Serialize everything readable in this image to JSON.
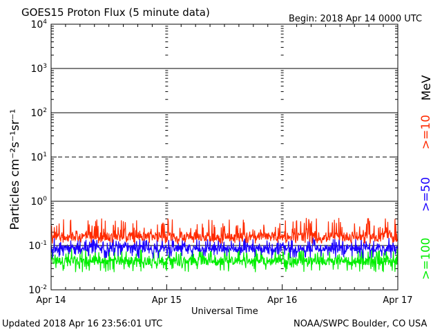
{
  "header": {
    "title": "GOES15 Proton Flux (5 minute data)",
    "begin": "Begin: 2018 Apr 14 0000 UTC"
  },
  "footer": {
    "updated": "Updated 2018 Apr 16 23:56:01 UTC",
    "credit": "NOAA/SWPC Boulder, CO USA"
  },
  "colors": {
    "ge10": "#ff2a00",
    "ge50": "#1a00ff",
    "ge100": "#00ee00",
    "axis": "#000000"
  },
  "chart_data": {
    "type": "line",
    "title": "GOES15 Proton Flux (5 minute data)",
    "xlabel": "Universal Time",
    "ylabel": "Particles cm⁻²s⁻¹sr⁻¹",
    "yscale": "log",
    "ylim": [
      0.01,
      10000
    ],
    "xlim_days": [
      0,
      3
    ],
    "y_ticks": [
      {
        "value": 10000,
        "mant": "10",
        "exp": "4"
      },
      {
        "value": 1000,
        "mant": "10",
        "exp": "3"
      },
      {
        "value": 100,
        "mant": "10",
        "exp": "2"
      },
      {
        "value": 10,
        "mant": "10",
        "exp": "1"
      },
      {
        "value": 1,
        "mant": "10",
        "exp": "0"
      },
      {
        "value": 0.1,
        "mant": "10",
        "exp": "-1"
      },
      {
        "value": 0.01,
        "mant": "10",
        "exp": "-2"
      }
    ],
    "x_ticks": [
      {
        "day": 0,
        "label": "Apr 14"
      },
      {
        "day": 1,
        "label": "Apr 15"
      },
      {
        "day": 2,
        "label": "Apr 16"
      },
      {
        "day": 3,
        "label": "Apr 17"
      }
    ],
    "threshold_lines": [
      {
        "value": 1000,
        "style": "solid"
      },
      {
        "value": 100,
        "style": "solid"
      },
      {
        "value": 10,
        "style": "dashed"
      },
      {
        "value": 1,
        "style": "solid"
      },
      {
        "value": 0.1,
        "style": "solid"
      }
    ],
    "units_label": "MeV",
    "series": [
      {
        "name": ">=10",
        "color": "#ff2a00",
        "baseline": 0.16,
        "min": 0.11,
        "max": 0.42,
        "t_end_days": 3.0
      },
      {
        "name": ">=50",
        "color": "#1a00ff",
        "baseline": 0.085,
        "min": 0.05,
        "max": 0.15,
        "t_end_days": 3.0
      },
      {
        "name": ">=100",
        "color": "#00ee00",
        "baseline": 0.045,
        "min": 0.025,
        "max": 0.09,
        "t_end_days": 3.0
      }
    ]
  }
}
